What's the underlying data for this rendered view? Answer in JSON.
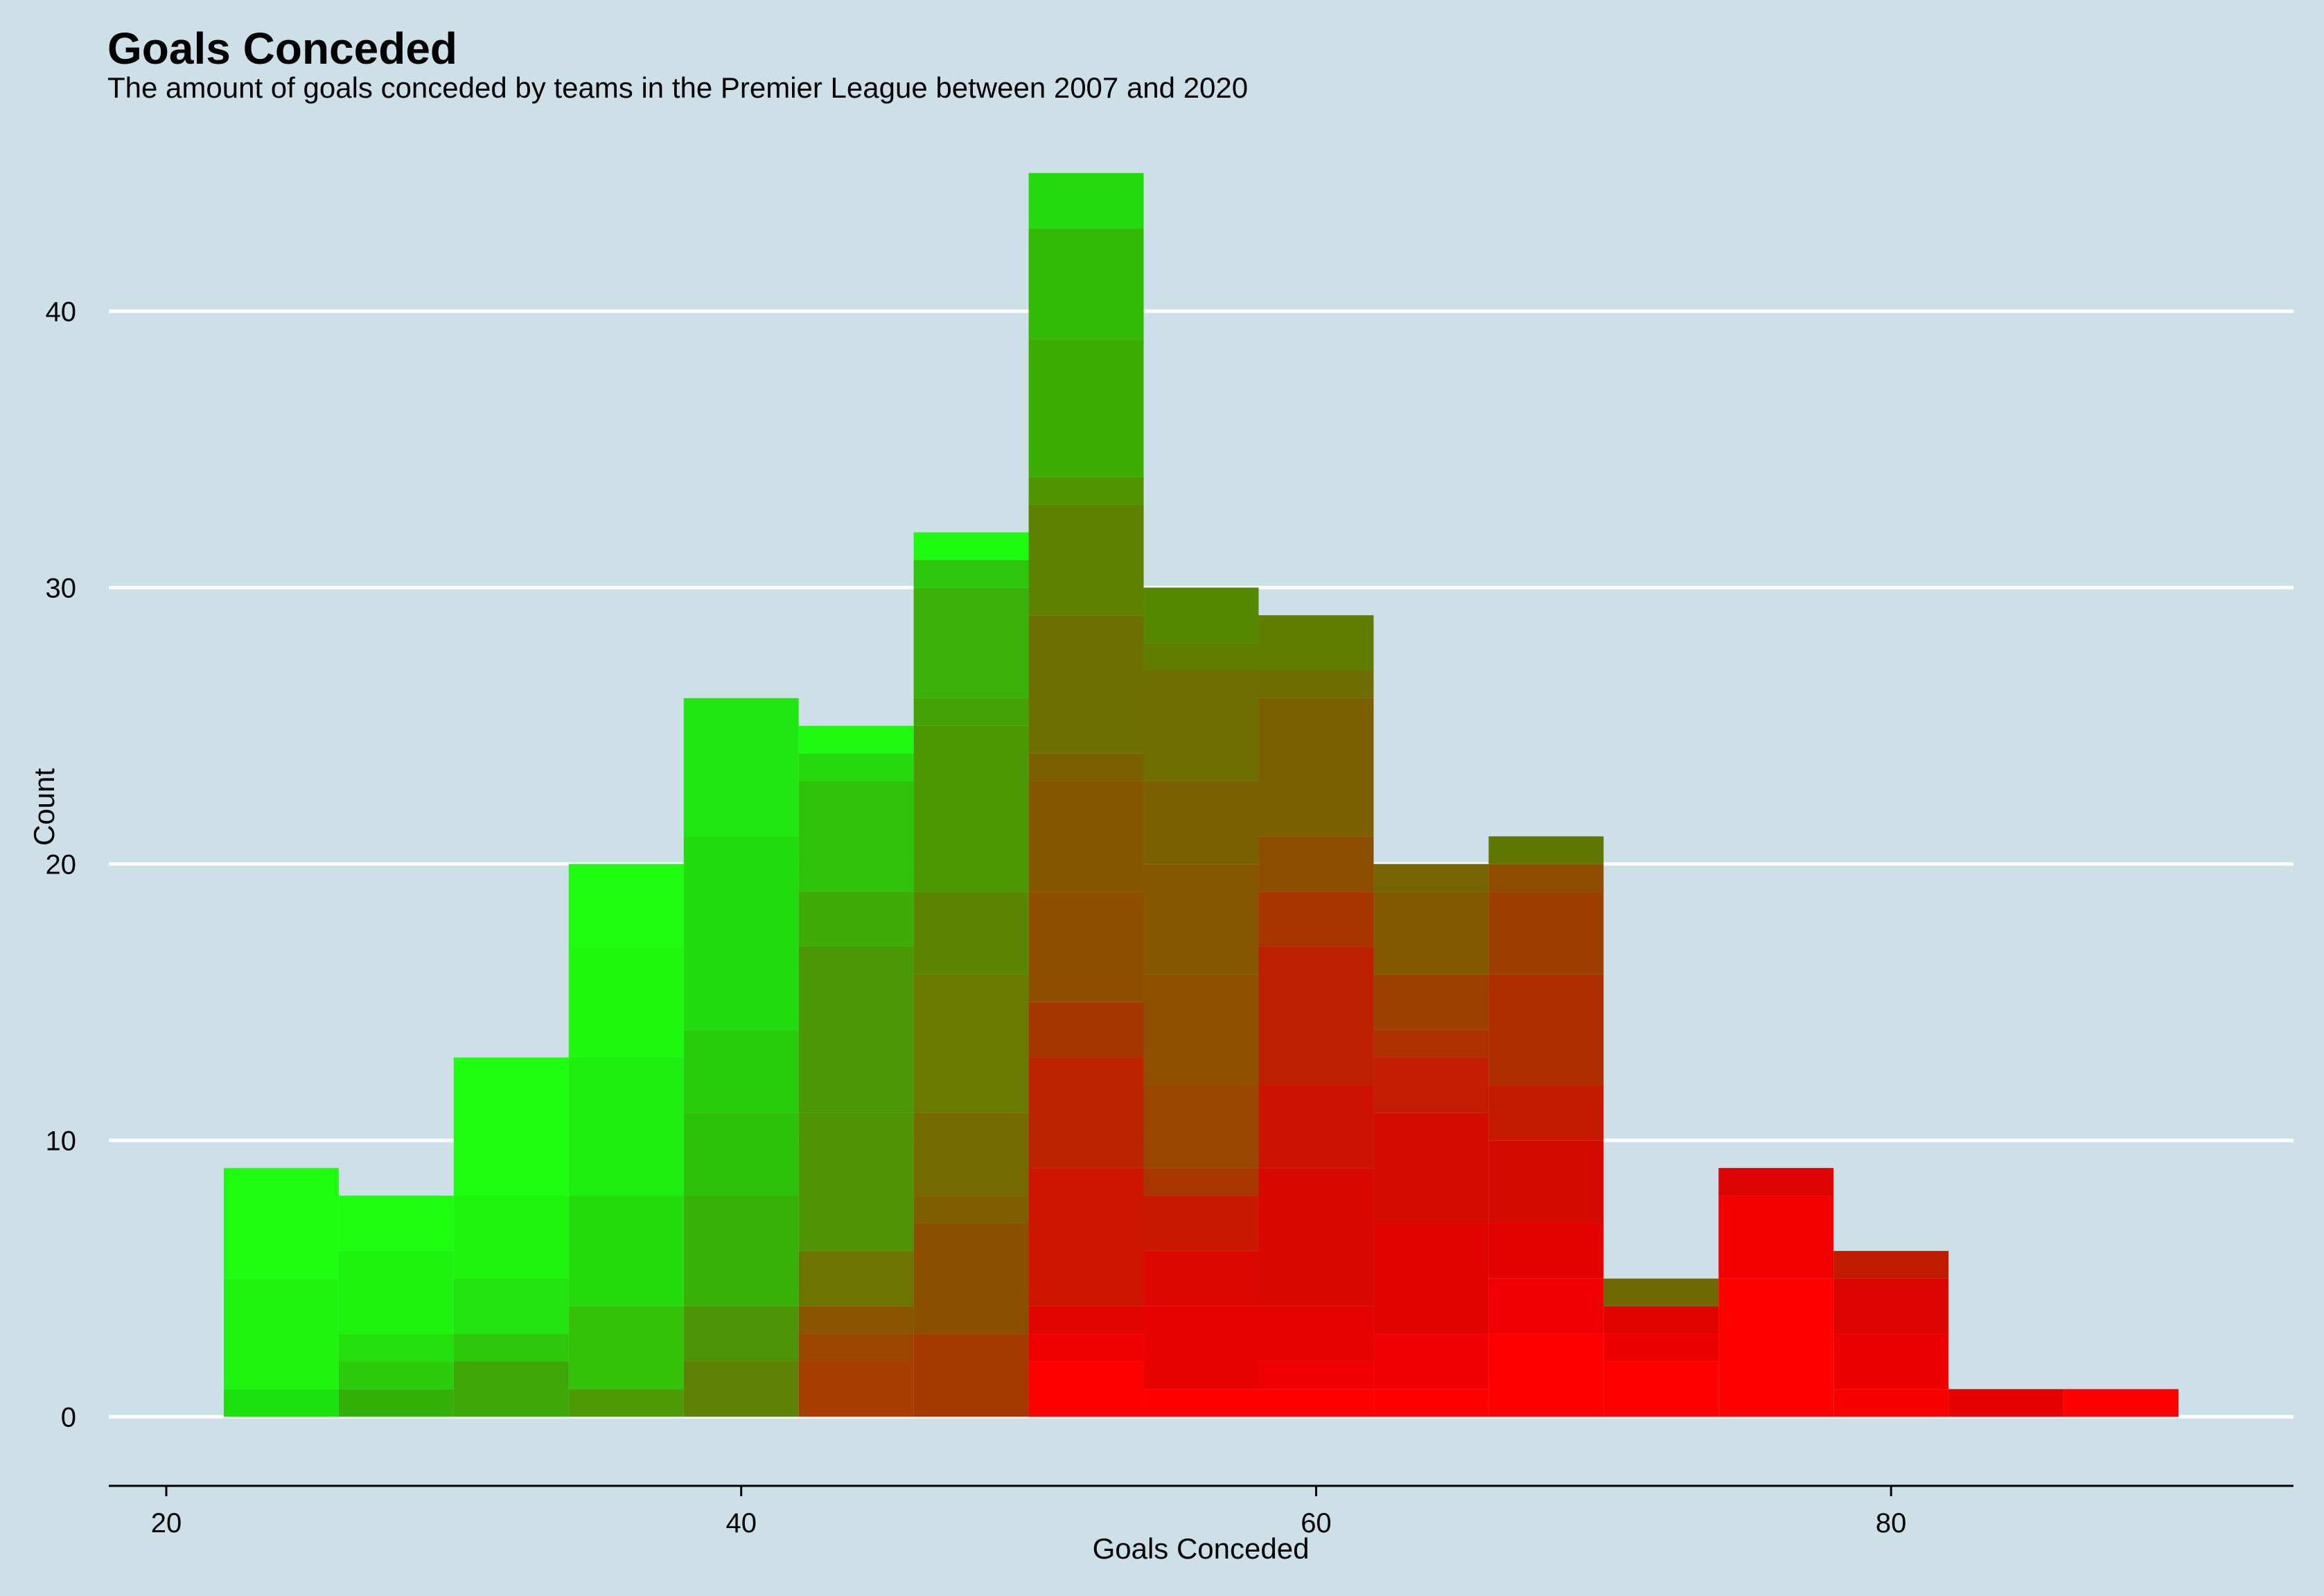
{
  "chart_data": {
    "type": "bar",
    "title": "Goals Conceded",
    "subtitle": "The amount of goals conceded by teams in the Premier League between 2007 and 2020",
    "xlabel": "Goals Conceded",
    "ylabel": "Count",
    "xlim": [
      18,
      94
    ],
    "ylim": [
      -2.5,
      47
    ],
    "x_ticks": [
      20,
      40,
      60,
      80
    ],
    "y_ticks": [
      0,
      10,
      20,
      30,
      40
    ],
    "bin_width": 4,
    "grid": {
      "horizontal": true,
      "vertical": false
    },
    "legend": "none",
    "colors": {
      "background": "#cde0e8",
      "gridline": "#ffffff",
      "axis": "#000000"
    },
    "bins": [
      {
        "x0": 22,
        "x1": 26,
        "count": 9,
        "segments": [
          {
            "y0": 0,
            "y1": 1,
            "color": "#1be20e"
          },
          {
            "y0": 1,
            "y1": 5,
            "color": "#1ef40f"
          },
          {
            "y0": 5,
            "y1": 9,
            "color": "#1efd0f"
          }
        ]
      },
      {
        "x0": 26,
        "x1": 30,
        "count": 8,
        "segments": [
          {
            "y0": 0,
            "y1": 1,
            "color": "#33b109"
          },
          {
            "y0": 1,
            "y1": 2,
            "color": "#2ccb0b"
          },
          {
            "y0": 2,
            "y1": 3,
            "color": "#25df0d"
          },
          {
            "y0": 3,
            "y1": 6,
            "color": "#1ef20f"
          },
          {
            "y0": 6,
            "y1": 8,
            "color": "#1efc0f"
          }
        ]
      },
      {
        "x0": 30,
        "x1": 34,
        "count": 13,
        "segments": [
          {
            "y0": 0,
            "y1": 2,
            "color": "#3da608"
          },
          {
            "y0": 2,
            "y1": 3,
            "color": "#2dc60b"
          },
          {
            "y0": 3,
            "y1": 5,
            "color": "#22e30d"
          },
          {
            "y0": 5,
            "y1": 8,
            "color": "#1ef40f"
          },
          {
            "y0": 8,
            "y1": 13,
            "color": "#1efc0f"
          }
        ]
      },
      {
        "x0": 34,
        "x1": 38,
        "count": 20,
        "segments": [
          {
            "y0": 0,
            "y1": 1,
            "color": "#4b9a06"
          },
          {
            "y0": 1,
            "y1": 4,
            "color": "#33c208"
          },
          {
            "y0": 4,
            "y1": 8,
            "color": "#24dc0c"
          },
          {
            "y0": 8,
            "y1": 13,
            "color": "#1eee0f"
          },
          {
            "y0": 13,
            "y1": 17,
            "color": "#1ef80f"
          },
          {
            "y0": 17,
            "y1": 20,
            "color": "#1efd0f"
          }
        ]
      },
      {
        "x0": 38,
        "x1": 42,
        "count": 26,
        "segments": [
          {
            "y0": 0,
            "y1": 2,
            "color": "#5e8204"
          },
          {
            "y0": 2,
            "y1": 4,
            "color": "#4d9506"
          },
          {
            "y0": 4,
            "y1": 8,
            "color": "#38b008"
          },
          {
            "y0": 8,
            "y1": 11,
            "color": "#2cc20a"
          },
          {
            "y0": 11,
            "y1": 14,
            "color": "#27cd0b"
          },
          {
            "y0": 14,
            "y1": 21,
            "color": "#22dc0d"
          },
          {
            "y0": 21,
            "y1": 26,
            "color": "#1ee80f"
          }
        ]
      },
      {
        "x0": 42,
        "x1": 46,
        "count": 25,
        "segments": [
          {
            "y0": 0,
            "y1": 2,
            "color": "#a73d00"
          },
          {
            "y0": 2,
            "y1": 3,
            "color": "#9c4500"
          },
          {
            "y0": 3,
            "y1": 4,
            "color": "#8a5500"
          },
          {
            "y0": 4,
            "y1": 6,
            "color": "#6e7400"
          },
          {
            "y0": 6,
            "y1": 11,
            "color": "#4e9404"
          },
          {
            "y0": 11,
            "y1": 17,
            "color": "#4a9805"
          },
          {
            "y0": 17,
            "y1": 19,
            "color": "#3fab07"
          },
          {
            "y0": 19,
            "y1": 23,
            "color": "#2ec20a"
          },
          {
            "y0": 23,
            "y1": 24,
            "color": "#24da0c"
          },
          {
            "y0": 24,
            "y1": 25,
            "color": "#1ef90f"
          }
        ]
      },
      {
        "x0": 46,
        "x1": 50,
        "count": 32,
        "segments": [
          {
            "y0": 0,
            "y1": 3,
            "color": "#a43a00"
          },
          {
            "y0": 3,
            "y1": 7,
            "color": "#8b4f00"
          },
          {
            "y0": 7,
            "y1": 8,
            "color": "#7f5e00"
          },
          {
            "y0": 8,
            "y1": 11,
            "color": "#756b00"
          },
          {
            "y0": 11,
            "y1": 16,
            "color": "#6a7900"
          },
          {
            "y0": 16,
            "y1": 19,
            "color": "#5c8602"
          },
          {
            "y0": 19,
            "y1": 25,
            "color": "#4c9804"
          },
          {
            "y0": 25,
            "y1": 26,
            "color": "#44a106"
          },
          {
            "y0": 26,
            "y1": 30,
            "color": "#3ab008"
          },
          {
            "y0": 30,
            "y1": 31,
            "color": "#2ec60b"
          },
          {
            "y0": 31,
            "y1": 32,
            "color": "#1efa0f"
          }
        ]
      },
      {
        "x0": 50,
        "x1": 54,
        "count": 45,
        "segments": [
          {
            "y0": 0,
            "y1": 2,
            "color": "#ff0000"
          },
          {
            "y0": 2,
            "y1": 3,
            "color": "#f00000"
          },
          {
            "y0": 3,
            "y1": 4,
            "color": "#e00500"
          },
          {
            "y0": 4,
            "y1": 9,
            "color": "#cc1400"
          },
          {
            "y0": 9,
            "y1": 13,
            "color": "#bc2400"
          },
          {
            "y0": 13,
            "y1": 15,
            "color": "#a63600"
          },
          {
            "y0": 15,
            "y1": 19,
            "color": "#8e4e00"
          },
          {
            "y0": 19,
            "y1": 23,
            "color": "#845600"
          },
          {
            "y0": 23,
            "y1": 24,
            "color": "#7a6000"
          },
          {
            "y0": 24,
            "y1": 29,
            "color": "#6c7000"
          },
          {
            "y0": 29,
            "y1": 33,
            "color": "#5d8200"
          },
          {
            "y0": 33,
            "y1": 34,
            "color": "#509402"
          },
          {
            "y0": 34,
            "y1": 39,
            "color": "#3bae04"
          },
          {
            "y0": 39,
            "y1": 43,
            "color": "#31bb06"
          },
          {
            "y0": 43,
            "y1": 45,
            "color": "#22da0c"
          }
        ]
      },
      {
        "x0": 54,
        "x1": 58,
        "count": 30,
        "segments": [
          {
            "y0": 0,
            "y1": 1,
            "color": "#ff0000"
          },
          {
            "y0": 1,
            "y1": 4,
            "color": "#e80300"
          },
          {
            "y0": 4,
            "y1": 6,
            "color": "#dc0800"
          },
          {
            "y0": 6,
            "y1": 8,
            "color": "#c81800"
          },
          {
            "y0": 8,
            "y1": 9,
            "color": "#a83600"
          },
          {
            "y0": 9,
            "y1": 12,
            "color": "#984600"
          },
          {
            "y0": 12,
            "y1": 16,
            "color": "#8e4f00"
          },
          {
            "y0": 16,
            "y1": 20,
            "color": "#855700"
          },
          {
            "y0": 20,
            "y1": 23,
            "color": "#7a6000"
          },
          {
            "y0": 23,
            "y1": 27,
            "color": "#6e6f00"
          },
          {
            "y0": 27,
            "y1": 28,
            "color": "#607d00"
          },
          {
            "y0": 28,
            "y1": 30,
            "color": "#558a00"
          }
        ]
      },
      {
        "x0": 58,
        "x1": 62,
        "count": 29,
        "segments": [
          {
            "y0": 0,
            "y1": 1,
            "color": "#ff0000"
          },
          {
            "y0": 1,
            "y1": 2,
            "color": "#f00000"
          },
          {
            "y0": 2,
            "y1": 4,
            "color": "#e60200"
          },
          {
            "y0": 4,
            "y1": 9,
            "color": "#d80800"
          },
          {
            "y0": 9,
            "y1": 12,
            "color": "#cc1200"
          },
          {
            "y0": 12,
            "y1": 17,
            "color": "#bc2000"
          },
          {
            "y0": 17,
            "y1": 19,
            "color": "#a83400"
          },
          {
            "y0": 19,
            "y1": 21,
            "color": "#8c4e00"
          },
          {
            "y0": 21,
            "y1": 26,
            "color": "#7a6000"
          },
          {
            "y0": 26,
            "y1": 27,
            "color": "#6e6e00"
          },
          {
            "y0": 27,
            "y1": 29,
            "color": "#607d00"
          }
        ]
      },
      {
        "x0": 62,
        "x1": 66,
        "count": 20,
        "segments": [
          {
            "y0": 0,
            "y1": 1,
            "color": "#ff0000"
          },
          {
            "y0": 1,
            "y1": 3,
            "color": "#f00000"
          },
          {
            "y0": 3,
            "y1": 7,
            "color": "#e00400"
          },
          {
            "y0": 7,
            "y1": 11,
            "color": "#d40c00"
          },
          {
            "y0": 11,
            "y1": 13,
            "color": "#c41c00"
          },
          {
            "y0": 13,
            "y1": 14,
            "color": "#ac3000"
          },
          {
            "y0": 14,
            "y1": 16,
            "color": "#9c4000"
          },
          {
            "y0": 16,
            "y1": 19,
            "color": "#845800"
          },
          {
            "y0": 19,
            "y1": 20,
            "color": "#766400"
          }
        ]
      },
      {
        "x0": 66,
        "x1": 70,
        "count": 21,
        "segments": [
          {
            "y0": 0,
            "y1": 3,
            "color": "#ff0000"
          },
          {
            "y0": 3,
            "y1": 5,
            "color": "#f00000"
          },
          {
            "y0": 5,
            "y1": 7,
            "color": "#e20300"
          },
          {
            "y0": 7,
            "y1": 10,
            "color": "#d40a00"
          },
          {
            "y0": 10,
            "y1": 12,
            "color": "#c41a00"
          },
          {
            "y0": 12,
            "y1": 16,
            "color": "#ae2e00"
          },
          {
            "y0": 16,
            "y1": 19,
            "color": "#9c3e00"
          },
          {
            "y0": 19,
            "y1": 20,
            "color": "#8e4c00"
          },
          {
            "y0": 20,
            "y1": 21,
            "color": "#607800"
          }
        ]
      },
      {
        "x0": 70,
        "x1": 74,
        "count": 5,
        "segments": [
          {
            "y0": 0,
            "y1": 2,
            "color": "#ff0000"
          },
          {
            "y0": 2,
            "y1": 3,
            "color": "#ee0000"
          },
          {
            "y0": 3,
            "y1": 4,
            "color": "#e00400"
          },
          {
            "y0": 4,
            "y1": 5,
            "color": "#706800"
          }
        ]
      },
      {
        "x0": 74,
        "x1": 78,
        "count": 9,
        "segments": [
          {
            "y0": 0,
            "y1": 5,
            "color": "#ff0000"
          },
          {
            "y0": 5,
            "y1": 8,
            "color": "#f20000"
          },
          {
            "y0": 8,
            "y1": 9,
            "color": "#dc0400"
          }
        ]
      },
      {
        "x0": 78,
        "x1": 82,
        "count": 6,
        "segments": [
          {
            "y0": 0,
            "y1": 1,
            "color": "#f80000"
          },
          {
            "y0": 1,
            "y1": 3,
            "color": "#ee0000"
          },
          {
            "y0": 3,
            "y1": 5,
            "color": "#dc0400"
          },
          {
            "y0": 5,
            "y1": 6,
            "color": "#c01a00"
          }
        ]
      },
      {
        "x0": 82,
        "x1": 86,
        "count": 1,
        "segments": [
          {
            "y0": 0,
            "y1": 1,
            "color": "#e60000"
          }
        ]
      },
      {
        "x0": 86,
        "x1": 90,
        "count": 1,
        "segments": [
          {
            "y0": 0,
            "y1": 1,
            "color": "#ff0000"
          }
        ]
      }
    ]
  }
}
